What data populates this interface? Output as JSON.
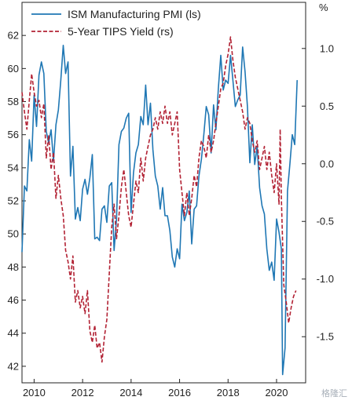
{
  "chart_data": {
    "type": "line",
    "title": "",
    "xlabel": "",
    "ylabel_left": "",
    "ylabel_right": "%",
    "x_ticks": [
      "2010",
      "2012",
      "2014",
      "2016",
      "2018",
      "2020"
    ],
    "x_range": [
      2009.5,
      2021.2
    ],
    "y_left": {
      "range": [
        41,
        64
      ],
      "ticks": [
        "42",
        "44",
        "46",
        "48",
        "50",
        "52",
        "54",
        "56",
        "58",
        "60",
        "62"
      ]
    },
    "y_right": {
      "range": [
        -1.9,
        1.4
      ],
      "ticks": [
        "1.0",
        "0.5",
        "0.0",
        "-0.5",
        "-1.0",
        "-1.5"
      ]
    },
    "grid": false,
    "legend": "top-left",
    "series": [
      {
        "name": "ISM Manufacturing PMI (ls)",
        "axis": "left",
        "color": "#1f77b4",
        "style": "solid",
        "points": [
          [
            2009.5,
            48.9
          ],
          [
            2009.6,
            52.9
          ],
          [
            2009.7,
            52.6
          ],
          [
            2009.8,
            55.7
          ],
          [
            2009.9,
            54.4
          ],
          [
            2010.0,
            58.4
          ],
          [
            2010.1,
            56.5
          ],
          [
            2010.2,
            59.6
          ],
          [
            2010.3,
            60.4
          ],
          [
            2010.4,
            59.7
          ],
          [
            2010.5,
            56.2
          ],
          [
            2010.6,
            55.5
          ],
          [
            2010.7,
            56.3
          ],
          [
            2010.8,
            54.4
          ],
          [
            2010.9,
            56.6
          ],
          [
            2011.0,
            57.5
          ],
          [
            2011.1,
            59.3
          ],
          [
            2011.2,
            61.4
          ],
          [
            2011.3,
            59.7
          ],
          [
            2011.4,
            60.4
          ],
          [
            2011.5,
            53.5
          ],
          [
            2011.6,
            55.3
          ],
          [
            2011.7,
            50.9
          ],
          [
            2011.8,
            51.6
          ],
          [
            2011.9,
            50.8
          ],
          [
            2012.0,
            52.7
          ],
          [
            2012.1,
            53.3
          ],
          [
            2012.2,
            52.4
          ],
          [
            2012.3,
            53.4
          ],
          [
            2012.4,
            54.8
          ],
          [
            2012.5,
            49.7
          ],
          [
            2012.6,
            49.8
          ],
          [
            2012.7,
            49.6
          ],
          [
            2012.8,
            51.5
          ],
          [
            2012.9,
            51.7
          ],
          [
            2013.0,
            50.7
          ],
          [
            2013.1,
            52.9
          ],
          [
            2013.2,
            53.1
          ],
          [
            2013.3,
            49.0
          ],
          [
            2013.4,
            50.9
          ],
          [
            2013.5,
            55.4
          ],
          [
            2013.6,
            56.2
          ],
          [
            2013.7,
            56.4
          ],
          [
            2013.8,
            57.0
          ],
          [
            2013.9,
            57.3
          ],
          [
            2014.0,
            51.3
          ],
          [
            2014.1,
            53.7
          ],
          [
            2014.2,
            54.9
          ],
          [
            2014.3,
            55.4
          ],
          [
            2014.4,
            57.1
          ],
          [
            2014.5,
            56.6
          ],
          [
            2014.6,
            59.0
          ],
          [
            2014.7,
            56.6
          ],
          [
            2014.8,
            57.9
          ],
          [
            2014.9,
            55.1
          ],
          [
            2015.0,
            53.5
          ],
          [
            2015.1,
            52.9
          ],
          [
            2015.2,
            51.5
          ],
          [
            2015.3,
            52.8
          ],
          [
            2015.4,
            51.1
          ],
          [
            2015.5,
            51.1
          ],
          [
            2015.6,
            50.2
          ],
          [
            2015.7,
            48.6
          ],
          [
            2015.8,
            48.0
          ],
          [
            2015.9,
            49.1
          ],
          [
            2016.0,
            48.5
          ],
          [
            2016.1,
            51.8
          ],
          [
            2016.2,
            50.8
          ],
          [
            2016.3,
            51.3
          ],
          [
            2016.4,
            52.6
          ],
          [
            2016.5,
            49.4
          ],
          [
            2016.6,
            51.5
          ],
          [
            2016.7,
            51.7
          ],
          [
            2016.8,
            53.5
          ],
          [
            2016.9,
            54.5
          ],
          [
            2017.0,
            56.0
          ],
          [
            2017.1,
            57.7
          ],
          [
            2017.2,
            57.2
          ],
          [
            2017.3,
            54.9
          ],
          [
            2017.4,
            57.8
          ],
          [
            2017.5,
            56.3
          ],
          [
            2017.6,
            58.8
          ],
          [
            2017.7,
            60.8
          ],
          [
            2017.8,
            58.7
          ],
          [
            2017.9,
            59.3
          ],
          [
            2018.0,
            59.1
          ],
          [
            2018.1,
            60.8
          ],
          [
            2018.2,
            59.3
          ],
          [
            2018.3,
            57.7
          ],
          [
            2018.4,
            58.1
          ],
          [
            2018.5,
            58.4
          ],
          [
            2018.6,
            61.3
          ],
          [
            2018.7,
            59.8
          ],
          [
            2018.8,
            57.7
          ],
          [
            2018.9,
            54.3
          ],
          [
            2019.0,
            56.6
          ],
          [
            2019.1,
            54.2
          ],
          [
            2019.2,
            55.3
          ],
          [
            2019.3,
            52.8
          ],
          [
            2019.4,
            51.7
          ],
          [
            2019.5,
            51.2
          ],
          [
            2019.6,
            49.1
          ],
          [
            2019.7,
            47.8
          ],
          [
            2019.8,
            48.3
          ],
          [
            2019.9,
            47.2
          ],
          [
            2020.0,
            50.9
          ],
          [
            2020.1,
            50.1
          ],
          [
            2020.2,
            49.1
          ],
          [
            2020.25,
            41.5
          ],
          [
            2020.35,
            43.1
          ],
          [
            2020.45,
            52.6
          ],
          [
            2020.55,
            54.2
          ],
          [
            2020.65,
            56.0
          ],
          [
            2020.75,
            55.4
          ],
          [
            2020.85,
            59.3
          ]
        ]
      },
      {
        "name": "5-Year TIPS Yield (rs)",
        "axis": "right",
        "color": "#b22234",
        "style": "dashed",
        "points": [
          [
            2009.5,
            0.62
          ],
          [
            2009.6,
            0.45
          ],
          [
            2009.7,
            0.3
          ],
          [
            2009.8,
            0.55
          ],
          [
            2009.9,
            0.78
          ],
          [
            2010.0,
            0.62
          ],
          [
            2010.1,
            0.5
          ],
          [
            2010.2,
            0.55
          ],
          [
            2010.3,
            0.4
          ],
          [
            2010.4,
            0.52
          ],
          [
            2010.5,
            0.05
          ],
          [
            2010.6,
            0.25
          ],
          [
            2010.7,
            -0.05
          ],
          [
            2010.8,
            0.1
          ],
          [
            2010.9,
            -0.3
          ],
          [
            2011.0,
            -0.1
          ],
          [
            2011.1,
            -0.3
          ],
          [
            2011.2,
            -0.45
          ],
          [
            2011.3,
            -0.75
          ],
          [
            2011.4,
            -0.85
          ],
          [
            2011.5,
            -1.0
          ],
          [
            2011.6,
            -0.8
          ],
          [
            2011.7,
            -1.2
          ],
          [
            2011.8,
            -1.1
          ],
          [
            2011.9,
            -1.25
          ],
          [
            2012.0,
            -1.15
          ],
          [
            2012.1,
            -1.3
          ],
          [
            2012.2,
            -1.1
          ],
          [
            2012.3,
            -1.45
          ],
          [
            2012.4,
            -1.55
          ],
          [
            2012.5,
            -1.4
          ],
          [
            2012.6,
            -1.6
          ],
          [
            2012.7,
            -1.55
          ],
          [
            2012.8,
            -1.72
          ],
          [
            2012.9,
            -1.5
          ],
          [
            2013.0,
            -1.35
          ],
          [
            2013.1,
            -0.95
          ],
          [
            2013.2,
            -0.55
          ],
          [
            2013.3,
            -0.35
          ],
          [
            2013.4,
            -0.65
          ],
          [
            2013.5,
            -0.45
          ],
          [
            2013.6,
            -0.2
          ],
          [
            2013.7,
            -0.05
          ],
          [
            2013.8,
            -0.25
          ],
          [
            2013.9,
            -0.45
          ],
          [
            2014.0,
            -0.55
          ],
          [
            2014.1,
            -0.35
          ],
          [
            2014.2,
            -0.15
          ],
          [
            2014.3,
            -0.25
          ],
          [
            2014.4,
            0.05
          ],
          [
            2014.5,
            -0.15
          ],
          [
            2014.6,
            0.05
          ],
          [
            2014.7,
            0.15
          ],
          [
            2014.8,
            0.25
          ],
          [
            2014.9,
            0.3
          ],
          [
            2015.0,
            0.4
          ],
          [
            2015.1,
            0.3
          ],
          [
            2015.2,
            0.45
          ],
          [
            2015.3,
            0.35
          ],
          [
            2015.4,
            0.5
          ],
          [
            2015.5,
            0.35
          ],
          [
            2015.6,
            0.45
          ],
          [
            2015.7,
            0.25
          ],
          [
            2015.8,
            0.35
          ],
          [
            2015.9,
            0.45
          ],
          [
            2016.0,
            -0.05
          ],
          [
            2016.1,
            -0.25
          ],
          [
            2016.2,
            -0.45
          ],
          [
            2016.3,
            -0.25
          ],
          [
            2016.4,
            -0.45
          ],
          [
            2016.5,
            -0.3
          ],
          [
            2016.6,
            -0.1
          ],
          [
            2016.7,
            -0.2
          ],
          [
            2016.8,
            0.05
          ],
          [
            2016.9,
            0.2
          ],
          [
            2017.0,
            0.15
          ],
          [
            2017.1,
            0.05
          ],
          [
            2017.2,
            0.25
          ],
          [
            2017.3,
            0.1
          ],
          [
            2017.4,
            0.2
          ],
          [
            2017.5,
            0.35
          ],
          [
            2017.6,
            0.5
          ],
          [
            2017.7,
            0.65
          ],
          [
            2017.8,
            0.7
          ],
          [
            2017.9,
            0.85
          ],
          [
            2018.0,
            0.95
          ],
          [
            2018.1,
            1.1
          ],
          [
            2018.2,
            0.9
          ],
          [
            2018.3,
            0.75
          ],
          [
            2018.4,
            0.65
          ],
          [
            2018.5,
            0.55
          ],
          [
            2018.6,
            0.45
          ],
          [
            2018.7,
            0.3
          ],
          [
            2018.8,
            0.4
          ],
          [
            2018.9,
            0.35
          ],
          [
            2019.0,
            0.2
          ],
          [
            2019.1,
            0.1
          ],
          [
            2019.2,
            0.2
          ],
          [
            2019.3,
            -0.05
          ],
          [
            2019.4,
            0.05
          ],
          [
            2019.5,
            0.15
          ],
          [
            2019.6,
            -0.05
          ],
          [
            2019.7,
            0.1
          ],
          [
            2019.8,
            -0.1
          ],
          [
            2019.9,
            -0.25
          ],
          [
            2020.0,
            0.0
          ],
          [
            2020.1,
            -0.35
          ],
          [
            2020.15,
            0.3
          ],
          [
            2020.2,
            -0.3
          ],
          [
            2020.3,
            -1.05
          ],
          [
            2020.4,
            -1.2
          ],
          [
            2020.5,
            -1.38
          ],
          [
            2020.6,
            -1.25
          ],
          [
            2020.7,
            -1.15
          ],
          [
            2020.8,
            -1.1
          ]
        ]
      }
    ]
  },
  "watermark": "格隆汇"
}
